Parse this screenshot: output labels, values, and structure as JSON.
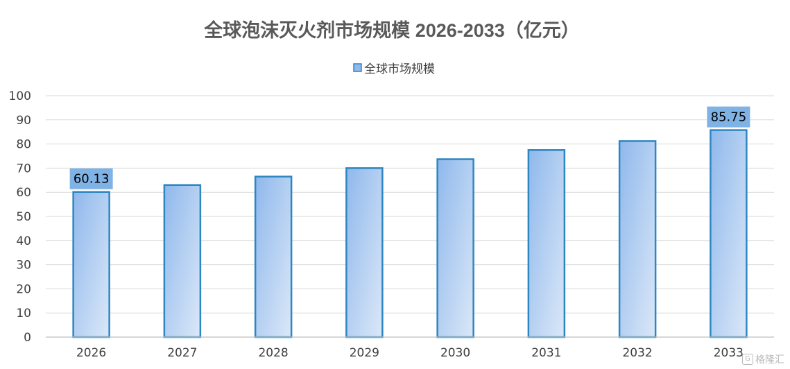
{
  "chart_data": {
    "type": "bar",
    "title": "全球泡沫灭火剂市场规模 2026-2033（亿元）",
    "categories": [
      "2026",
      "2027",
      "2028",
      "2029",
      "2030",
      "2031",
      "2032",
      "2033"
    ],
    "series": [
      {
        "name": "全球市场规模",
        "values": [
          60.13,
          63.0,
          66.5,
          70.0,
          73.7,
          77.5,
          81.2,
          85.75
        ]
      }
    ],
    "data_labels": [
      {
        "category": "2026",
        "text": "60.13"
      },
      {
        "category": "2033",
        "text": "85.75"
      }
    ],
    "ylim": [
      0,
      100
    ],
    "yticks": [
      "0",
      "10",
      "20",
      "30",
      "40",
      "50",
      "60",
      "70",
      "80",
      "90",
      "100"
    ],
    "xlabel": "",
    "ylabel": "",
    "grid": true,
    "legend_position": "top-center",
    "colors": {
      "bar_fill_top": "#8fb8ec",
      "bar_fill_bottom": "#dbe8f8",
      "bar_stroke": "#2e86c1",
      "label_bg": "#7fb2e5",
      "grid": "#d9d9d9",
      "title_text": "#595959",
      "axis_text": "#404040"
    }
  },
  "watermark": {
    "text": "格隆汇",
    "icon": "gelonghui-logo-icon"
  }
}
